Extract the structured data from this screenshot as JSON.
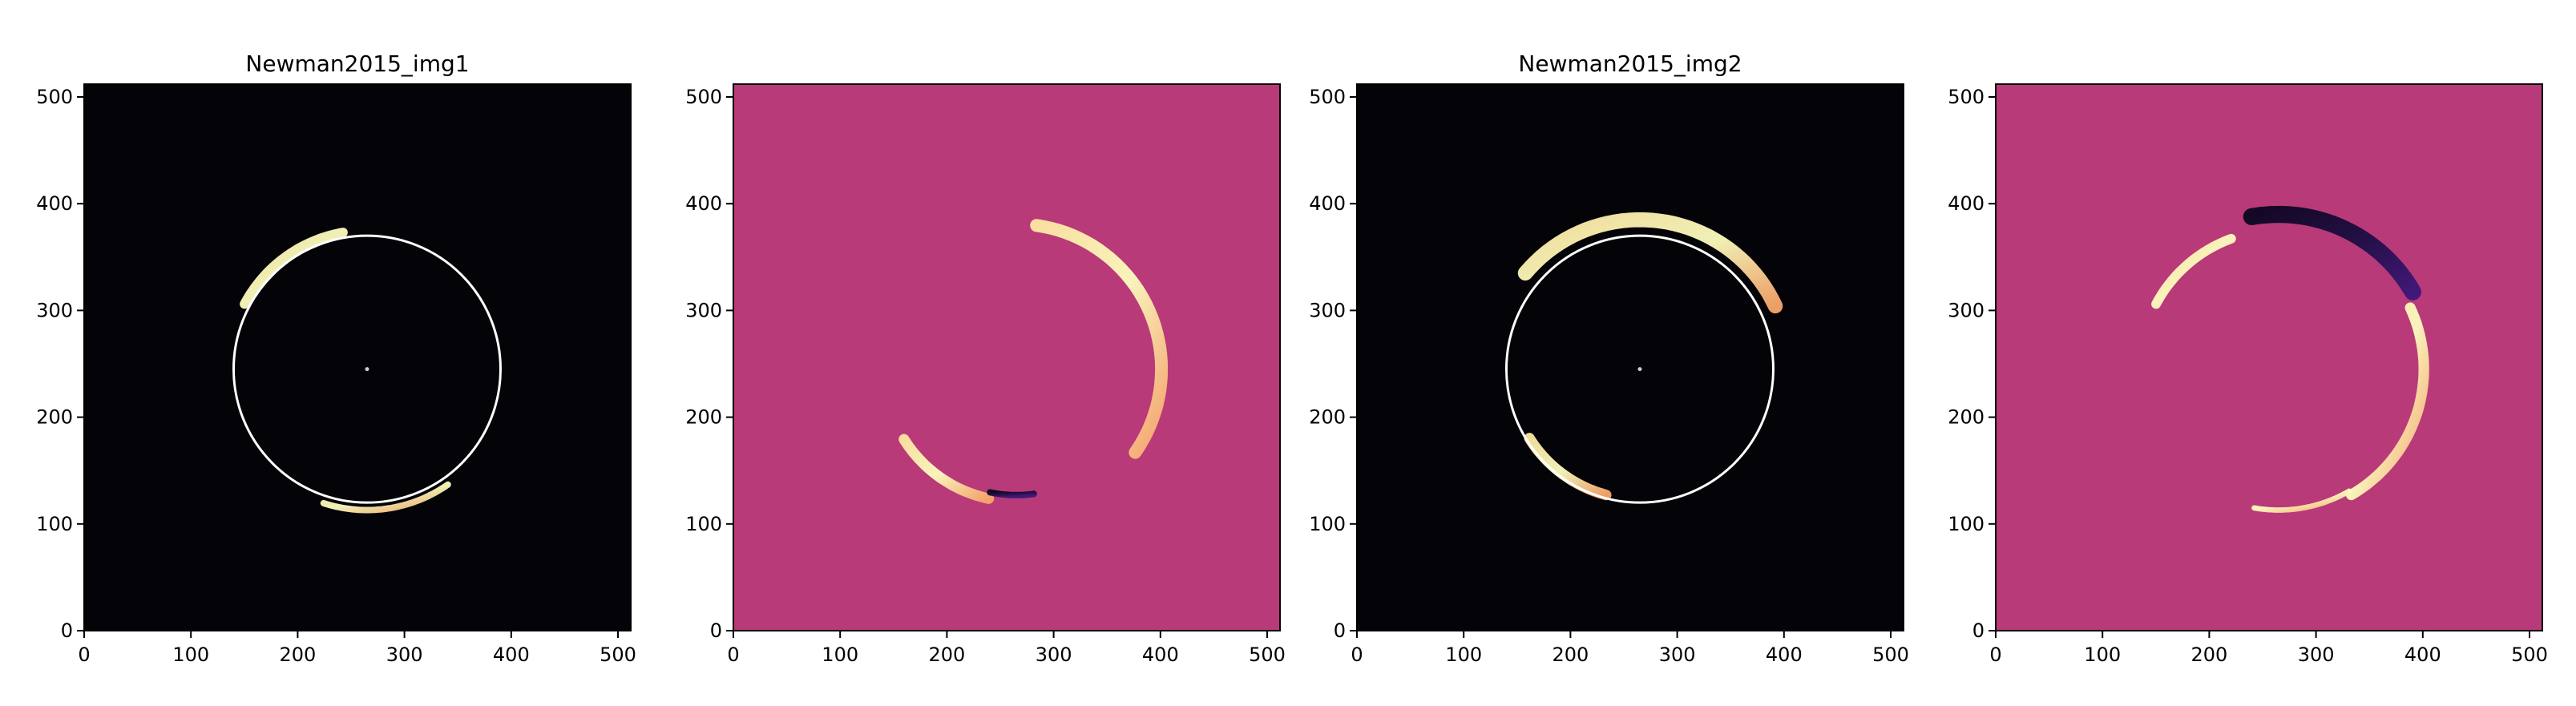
{
  "chart_data": [
    {
      "type": "heatmap",
      "title": "Newman2015_img1",
      "colormap": "magma",
      "background_color": "#030308",
      "xlim": [
        0,
        512
      ],
      "ylim": [
        0,
        512
      ],
      "xticks": [
        "0",
        "100",
        "200",
        "300",
        "400",
        "500"
      ],
      "yticks": [
        "0",
        "100",
        "200",
        "300",
        "400",
        "500"
      ],
      "circle": {
        "cx": 265,
        "cy": 245,
        "r": 125,
        "color": "#ffffff"
      },
      "center_dot": [
        265,
        245
      ],
      "arcs": [
        {
          "cx": 265,
          "cy": 245,
          "r": 130,
          "t0": 100,
          "t1": 152,
          "w": 9,
          "intensity": "bright"
        },
        {
          "cx": 265,
          "cy": 245,
          "r": 132,
          "t0": 252,
          "t1": 305,
          "w": 6,
          "intensity": "bright"
        }
      ]
    },
    {
      "type": "heatmap",
      "title": "",
      "colormap": "magma",
      "background_color": "#b83a78",
      "xlim": [
        0,
        512
      ],
      "ylim": [
        0,
        512
      ],
      "xticks": [
        "0",
        "100",
        "200",
        "300",
        "400",
        "500"
      ],
      "yticks": [
        "0",
        "100",
        "200",
        "300",
        "400",
        "500"
      ],
      "arcs": [
        {
          "cx": 265,
          "cy": 245,
          "r": 136,
          "t0": -35,
          "t1": 82,
          "w": 12,
          "intensity": "bright"
        },
        {
          "cx": 265,
          "cy": 245,
          "r": 124,
          "t0": 212,
          "t1": 258,
          "w": 10,
          "intensity": "bright"
        },
        {
          "cx": 265,
          "cy": 245,
          "r": 118,
          "t0": 258,
          "t1": 278,
          "w": 6,
          "intensity": "dark"
        }
      ]
    },
    {
      "type": "heatmap",
      "title": "Newman2015_img2",
      "colormap": "magma",
      "background_color": "#030308",
      "xlim": [
        0,
        512
      ],
      "ylim": [
        0,
        512
      ],
      "xticks": [
        "0",
        "100",
        "200",
        "300",
        "400",
        "500"
      ],
      "yticks": [
        "0",
        "100",
        "200",
        "300",
        "400",
        "500"
      ],
      "circle": {
        "cx": 265,
        "cy": 245,
        "r": 125,
        "color": "#ffffff"
      },
      "center_dot": [
        265,
        245
      ],
      "arcs": [
        {
          "cx": 265,
          "cy": 245,
          "r": 140,
          "t0": 25,
          "t1": 140,
          "w": 14,
          "intensity": "bright"
        },
        {
          "cx": 265,
          "cy": 245,
          "r": 122,
          "t0": 212,
          "t1": 255,
          "w": 10,
          "intensity": "bright"
        }
      ]
    },
    {
      "type": "heatmap",
      "title": "",
      "colormap": "magma",
      "background_color": "#b83a78",
      "xlim": [
        0,
        512
      ],
      "ylim": [
        0,
        512
      ],
      "xticks": [
        "0",
        "100",
        "200",
        "300",
        "400",
        "500"
      ],
      "yticks": [
        "0",
        "100",
        "200",
        "300",
        "400",
        "500"
      ],
      "arcs": [
        {
          "cx": 265,
          "cy": 245,
          "r": 145,
          "t0": 30,
          "t1": 100,
          "w": 16,
          "intensity": "dark"
        },
        {
          "cx": 265,
          "cy": 245,
          "r": 130,
          "t0": 110,
          "t1": 152,
          "w": 9,
          "intensity": "bright"
        },
        {
          "cx": 265,
          "cy": 245,
          "r": 136,
          "t0": -60,
          "t1": 25,
          "w": 10,
          "intensity": "bright"
        },
        {
          "cx": 265,
          "cy": 245,
          "r": 132,
          "t0": 260,
          "t1": 300,
          "w": 5,
          "intensity": "bright"
        }
      ]
    }
  ]
}
